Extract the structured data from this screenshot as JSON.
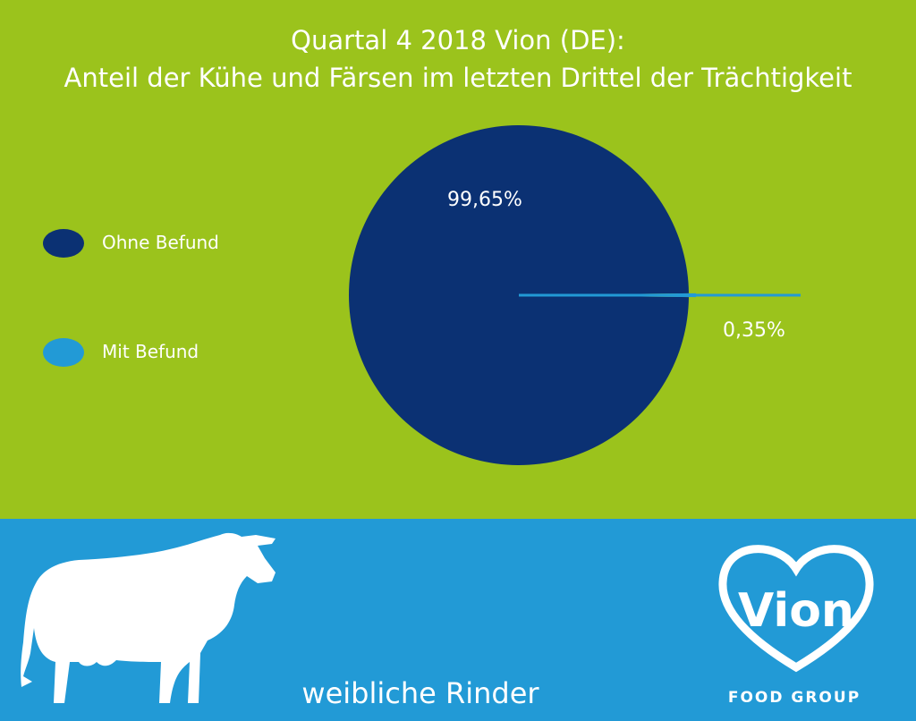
{
  "chart_data": {
    "type": "pie",
    "title": "Quartal 4 2018 Vion (DE):",
    "subtitle": "Anteil der Kühe und Färsen im letzten Drittel der Trächtigkeit",
    "slices": [
      {
        "label": "Ohne Befund",
        "value": 99.65,
        "display": "99,65%",
        "color": "#0b3173"
      },
      {
        "label": "Mit Befund",
        "value": 0.35,
        "display": "0,35%",
        "color": "#229ad6"
      }
    ],
    "legend_position": "left"
  },
  "footer": {
    "caption": "weibliche Rinder"
  },
  "logo": {
    "name": "Vion",
    "tagline": "FOOD GROUP"
  },
  "icons": {
    "cow": "cow-silhouette-icon",
    "logo": "vion-heart-logo"
  },
  "colors": {
    "background_top": "#9bc31c",
    "background_bottom": "#229ad6",
    "text": "#ffffff"
  }
}
